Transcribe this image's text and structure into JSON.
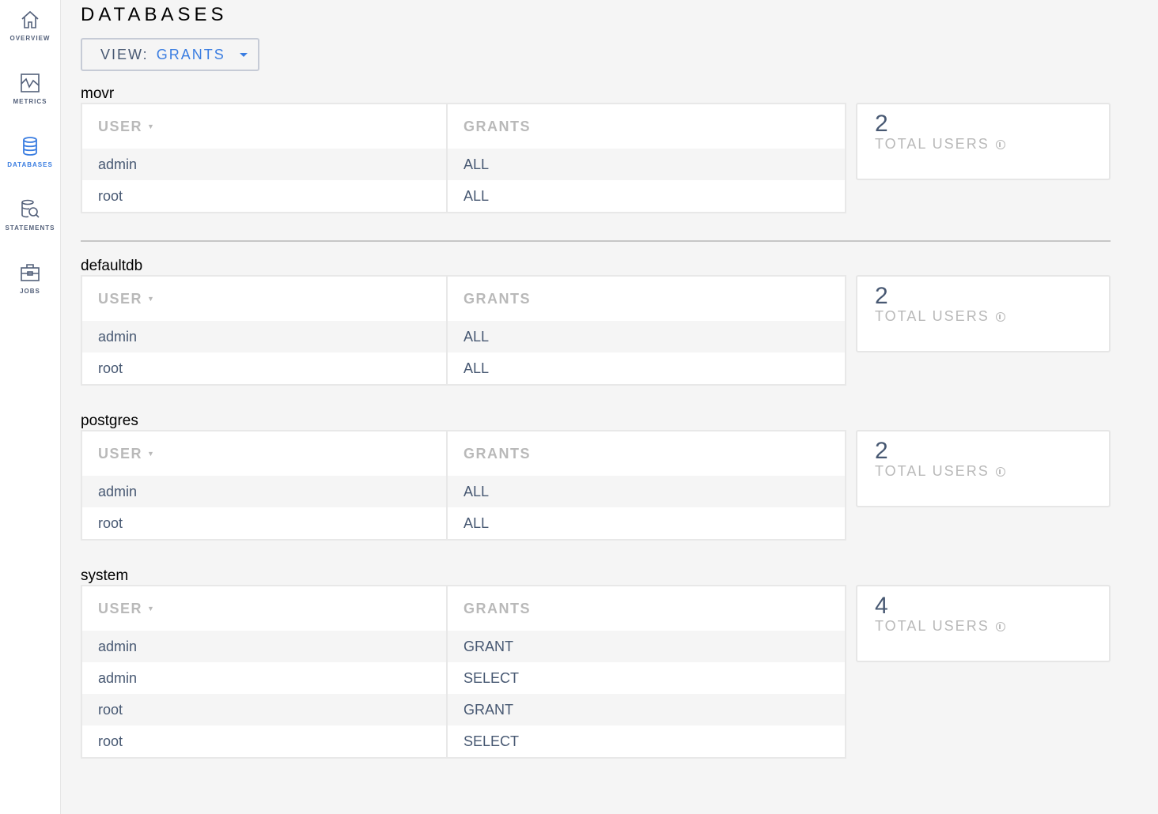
{
  "sidebar": {
    "items": [
      {
        "label": "OVERVIEW",
        "icon": "home-icon",
        "active": false
      },
      {
        "label": "METRICS",
        "icon": "metrics-icon",
        "active": false
      },
      {
        "label": "DATABASES",
        "icon": "database-icon",
        "active": true
      },
      {
        "label": "STATEMENTS",
        "icon": "statements-icon",
        "active": false
      },
      {
        "label": "JOBS",
        "icon": "briefcase-icon",
        "active": false
      }
    ]
  },
  "page": {
    "title": "DATABASES",
    "view_label": "VIEW:",
    "view_value": "GRANTS"
  },
  "colors": {
    "accent": "#3a7de1",
    "text": "#475872",
    "muted": "#b9b9b9"
  },
  "table_headers": {
    "user": "USER",
    "grants": "GRANTS"
  },
  "card_label": "TOTAL USERS",
  "sections": [
    {
      "name": "movr",
      "total_users": "2",
      "rows": [
        [
          "admin",
          "ALL"
        ],
        [
          "root",
          "ALL"
        ]
      ]
    },
    {
      "name": "defaultdb",
      "total_users": "2",
      "rows": [
        [
          "admin",
          "ALL"
        ],
        [
          "root",
          "ALL"
        ]
      ]
    },
    {
      "name": "postgres",
      "total_users": "2",
      "rows": [
        [
          "admin",
          "ALL"
        ],
        [
          "root",
          "ALL"
        ]
      ]
    },
    {
      "name": "system",
      "total_users": "4",
      "rows": [
        [
          "admin",
          "GRANT"
        ],
        [
          "admin",
          "SELECT"
        ],
        [
          "root",
          "GRANT"
        ],
        [
          "root",
          "SELECT"
        ]
      ]
    }
  ]
}
